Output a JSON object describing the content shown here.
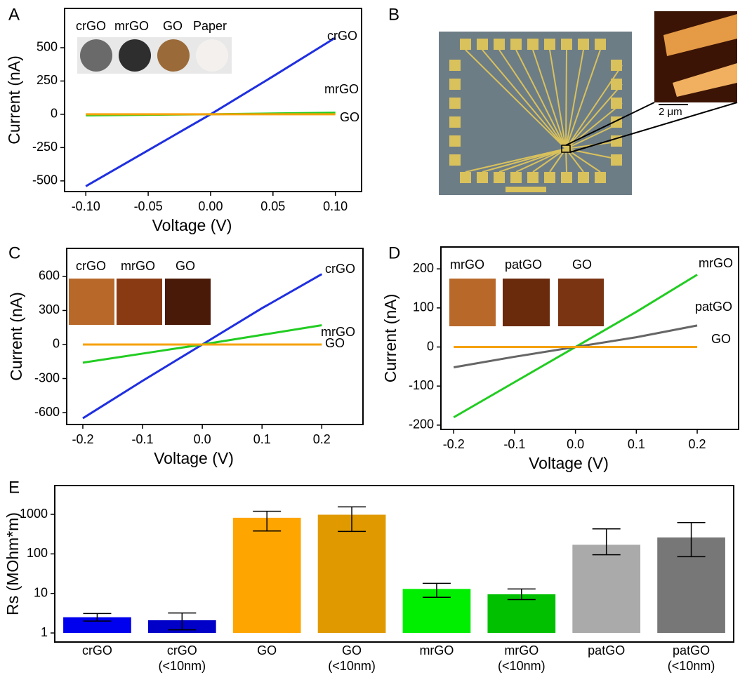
{
  "chart_data": [
    {
      "type": "line",
      "panel": "A",
      "xlabel": "Voltage (V)",
      "ylabel": "Current (nA)",
      "x": [
        -0.1,
        -0.05,
        0,
        0.05,
        0.1
      ],
      "series": [
        {
          "name": "crGO",
          "color": "#1f2fe0",
          "values": [
            -540,
            -270,
            0,
            285,
            575
          ]
        },
        {
          "name": "mrGO",
          "color": "#22cc22",
          "values": [
            -8,
            -4,
            0,
            6,
            12
          ]
        },
        {
          "name": "GO",
          "color": "#f5a20a",
          "values": [
            0,
            0,
            0,
            0,
            0
          ]
        }
      ],
      "annotations": [
        "Paper"
      ],
      "xlim": [
        -0.117,
        0.121
      ],
      "ylim": [
        -580,
        795
      ],
      "xticks": [
        {
          "value": -0.1,
          "label": "-0.10"
        },
        {
          "value": -0.05,
          "label": "-0.05"
        },
        {
          "value": 0,
          "label": "0.00"
        },
        {
          "value": 0.05,
          "label": "0.05"
        },
        {
          "value": 0.1,
          "label": "0.10"
        }
      ],
      "yticks": [
        -500,
        -250,
        0,
        250,
        500
      ]
    },
    {
      "type": "line",
      "panel": "C",
      "xlabel": "Voltage (V)",
      "ylabel": "Current (nA)",
      "x": [
        -0.2,
        -0.1,
        0,
        0.1,
        0.2
      ],
      "series": [
        {
          "name": "crGO",
          "color": "#1f2fe0",
          "values": [
            -650,
            -320,
            0,
            320,
            620
          ]
        },
        {
          "name": "mrGO",
          "color": "#22cc22",
          "values": [
            -160,
            -80,
            0,
            85,
            170
          ]
        },
        {
          "name": "GO",
          "color": "#f5a20a",
          "values": [
            0,
            0,
            0,
            0,
            0
          ]
        }
      ],
      "xlim": [
        -0.227,
        0.269
      ],
      "ylim": [
        -705,
        847
      ],
      "xticks": [
        -0.2,
        -0.1,
        {
          "value": 0,
          "label": "0.0"
        },
        0.1,
        0.2
      ],
      "yticks": [
        -600,
        -300,
        0,
        300,
        600
      ]
    },
    {
      "type": "line",
      "panel": "D",
      "xlabel": "Voltage (V)",
      "ylabel": "Current (nA)",
      "x": [
        -0.2,
        -0.1,
        0,
        0.1,
        0.2
      ],
      "series": [
        {
          "name": "mrGO",
          "color": "#22cc22",
          "values": [
            -180,
            -90,
            0,
            90,
            185
          ]
        },
        {
          "name": "patGO",
          "color": "#666666",
          "values": [
            -52,
            -25,
            0,
            25,
            55
          ]
        },
        {
          "name": "GO",
          "color": "#f5a20a",
          "values": [
            0,
            0,
            0,
            0,
            0
          ]
        }
      ],
      "xlim": [
        -0.221,
        0.268
      ],
      "ylim": [
        -211,
        256
      ],
      "xticks": [
        -0.2,
        -0.1,
        {
          "value": 0,
          "label": "0.0"
        },
        0.1,
        0.2
      ],
      "yticks": [
        -200,
        -100,
        0,
        100,
        200
      ]
    },
    {
      "type": "bar",
      "panel": "E",
      "ylabel": "Rs (MOhm*m)",
      "log_scale": true,
      "categories": [
        [
          "crGO"
        ],
        [
          "crGO",
          "(<10nm)"
        ],
        [
          "GO"
        ],
        [
          "GO",
          "(<10nm)"
        ],
        [
          "mrGO"
        ],
        [
          "mrGO",
          "(<10nm)"
        ],
        [
          "patGO"
        ],
        [
          "patGO",
          "(<10nm)"
        ]
      ],
      "values": [
        2.5,
        2.1,
        820,
        980,
        13,
        9.5,
        170,
        260
      ],
      "err_lower": [
        2.0,
        1.2,
        380,
        370,
        8,
        7,
        95,
        85
      ],
      "err_upper": [
        3.1,
        3.2,
        1200,
        1550,
        18,
        13,
        430,
        620
      ],
      "colors": [
        "#0000ee",
        "#0000c8",
        "#ffa500",
        "#e09a00",
        "#00ee00",
        "#00c000",
        "#aaaaaa",
        "#777777"
      ],
      "ylim": [
        0.59,
        5350
      ],
      "yticks": [
        1,
        10,
        100,
        1000
      ]
    }
  ],
  "image_panel": {
    "panel": "B",
    "scale_bar": "2 μm"
  }
}
